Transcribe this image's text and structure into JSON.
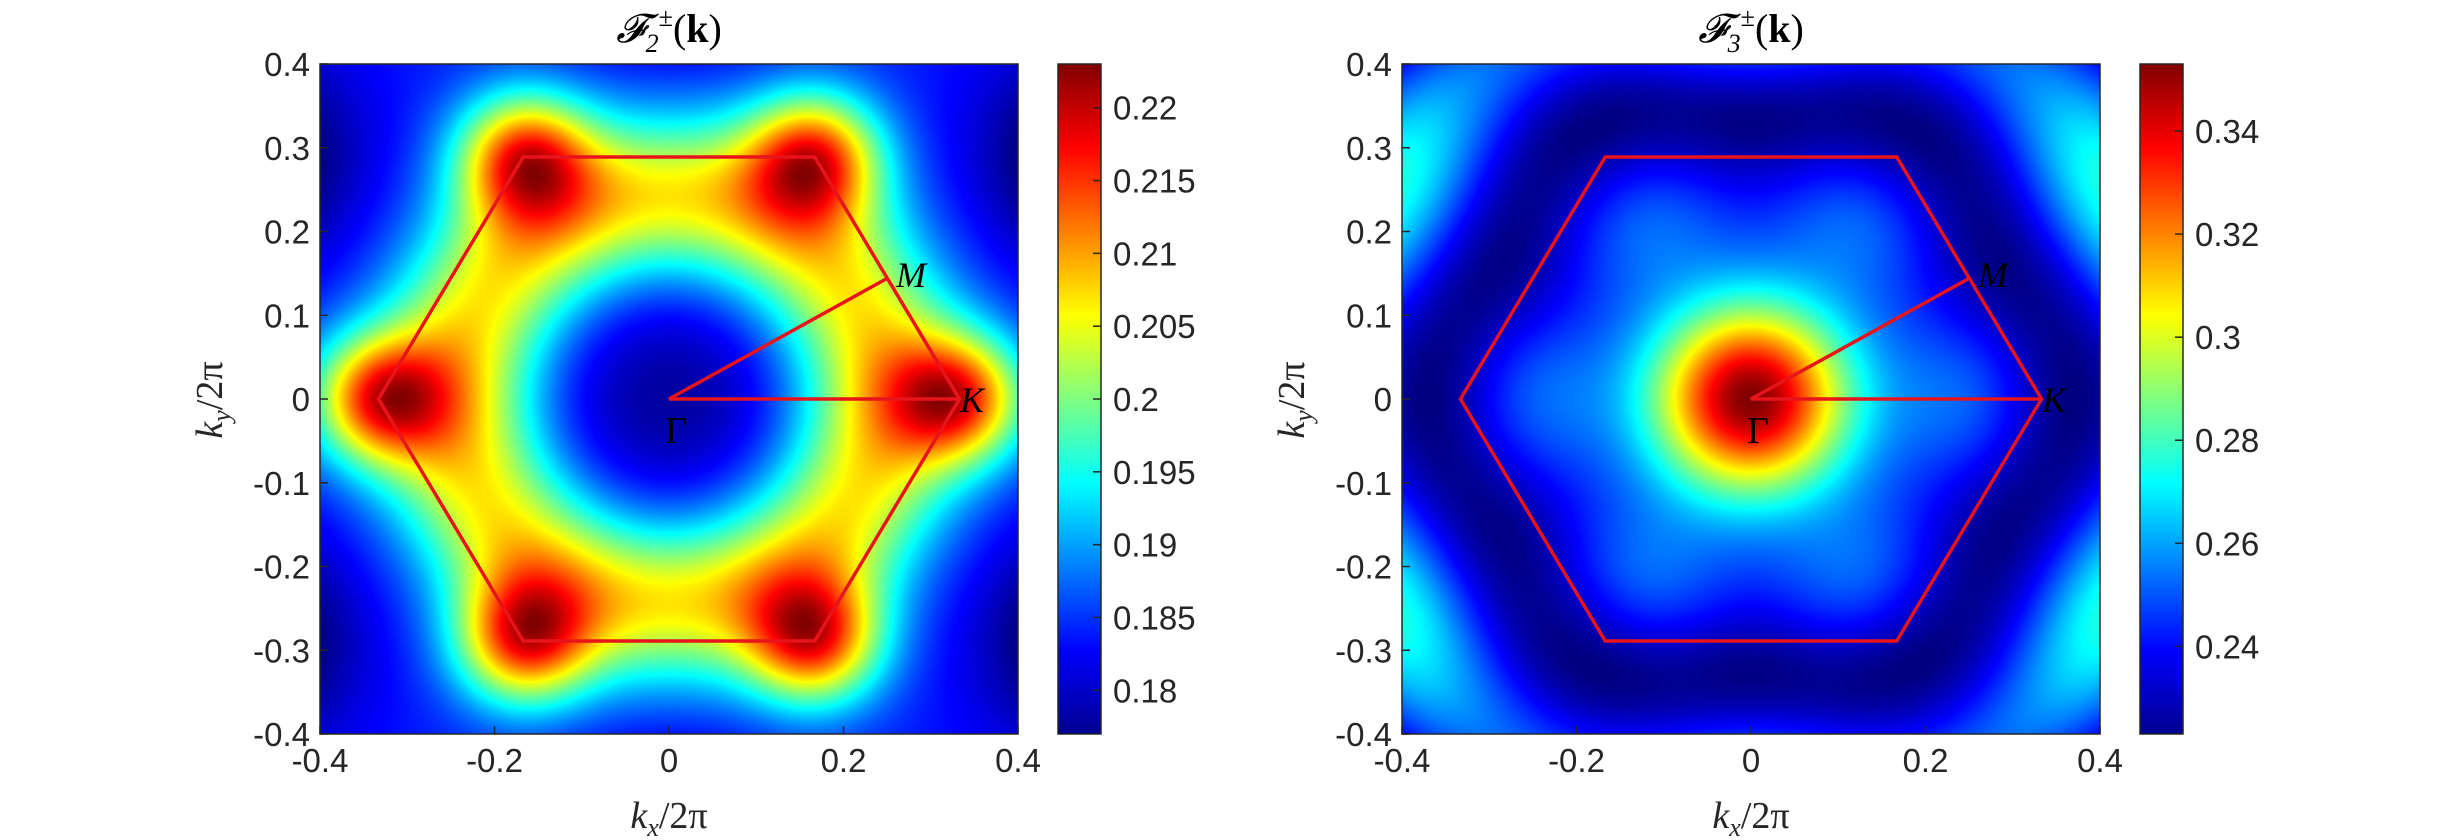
{
  "chart_data": [
    {
      "type": "heatmap",
      "title": "𝓕₂^±(𝐤)",
      "xlabel": "k_x/2π",
      "ylabel": "k_y/2π",
      "xlim": [
        -0.4,
        0.4
      ],
      "ylim": [
        -0.4,
        0.4
      ],
      "xticks": [
        "-0.4",
        "-0.2",
        "0",
        "0.2",
        "0.4"
      ],
      "yticks": [
        "0.4",
        "0.3",
        "0.2",
        "0.1",
        "0",
        "-0.1",
        "-0.2",
        "-0.3",
        "-0.4"
      ],
      "colormap": "jet",
      "clim": [
        0.177,
        0.223
      ],
      "colorbar_ticks": [
        "0.22",
        "0.215",
        "0.21",
        "0.205",
        "0.2",
        "0.195",
        "0.19",
        "0.185",
        "0.18"
      ],
      "field": "minimum at Γ (0.177), maxima near Brillouin-zone corners K (0.223)",
      "brillouin_zone": {
        "color": "#e8141c",
        "vertices": [
          [
            0.333,
            0
          ],
          [
            0.167,
            0.289
          ],
          [
            -0.167,
            0.289
          ],
          [
            -0.333,
            0
          ],
          [
            -0.167,
            -0.289
          ],
          [
            0.167,
            -0.289
          ]
        ]
      },
      "path": [
        [
          0.25,
          0.144
        ],
        [
          0,
          0
        ],
        [
          0.333,
          0
        ]
      ],
      "points": [
        {
          "label": "Γ",
          "x": 0,
          "y": 0
        },
        {
          "label": "M",
          "x": 0.25,
          "y": 0.144
        },
        {
          "label": "K",
          "x": 0.333,
          "y": 0
        }
      ]
    },
    {
      "type": "heatmap",
      "title": "𝓕₃^±(𝐤)",
      "xlabel": "k_x/2π",
      "ylabel": "k_y/2π",
      "xlim": [
        -0.4,
        0.4
      ],
      "ylim": [
        -0.4,
        0.4
      ],
      "xticks": [
        "-0.4",
        "-0.2",
        "0",
        "0.2",
        "0.4"
      ],
      "yticks": [
        "0.4",
        "0.3",
        "0.2",
        "0.1",
        "0",
        "-0.1",
        "-0.2",
        "-0.3",
        "-0.4"
      ],
      "colormap": "jet",
      "clim": [
        0.223,
        0.353
      ],
      "colorbar_ticks": [
        "0.34",
        "0.32",
        "0.3",
        "0.28",
        "0.26",
        "0.24"
      ],
      "field": "maximum at Γ (0.353), minima along the hexagon edges (0.223)",
      "brillouin_zone": {
        "color": "#e8141c",
        "vertices": [
          [
            0.333,
            0
          ],
          [
            0.167,
            0.289
          ],
          [
            -0.167,
            0.289
          ],
          [
            -0.333,
            0
          ],
          [
            -0.167,
            -0.289
          ],
          [
            0.167,
            -0.289
          ]
        ]
      },
      "path": [
        [
          0.25,
          0.144
        ],
        [
          0,
          0
        ],
        [
          0.333,
          0
        ]
      ],
      "points": [
        {
          "label": "Γ",
          "x": 0,
          "y": 0
        },
        {
          "label": "M",
          "x": 0.25,
          "y": 0.144
        },
        {
          "label": "K",
          "x": 0.333,
          "y": 0
        }
      ]
    }
  ]
}
